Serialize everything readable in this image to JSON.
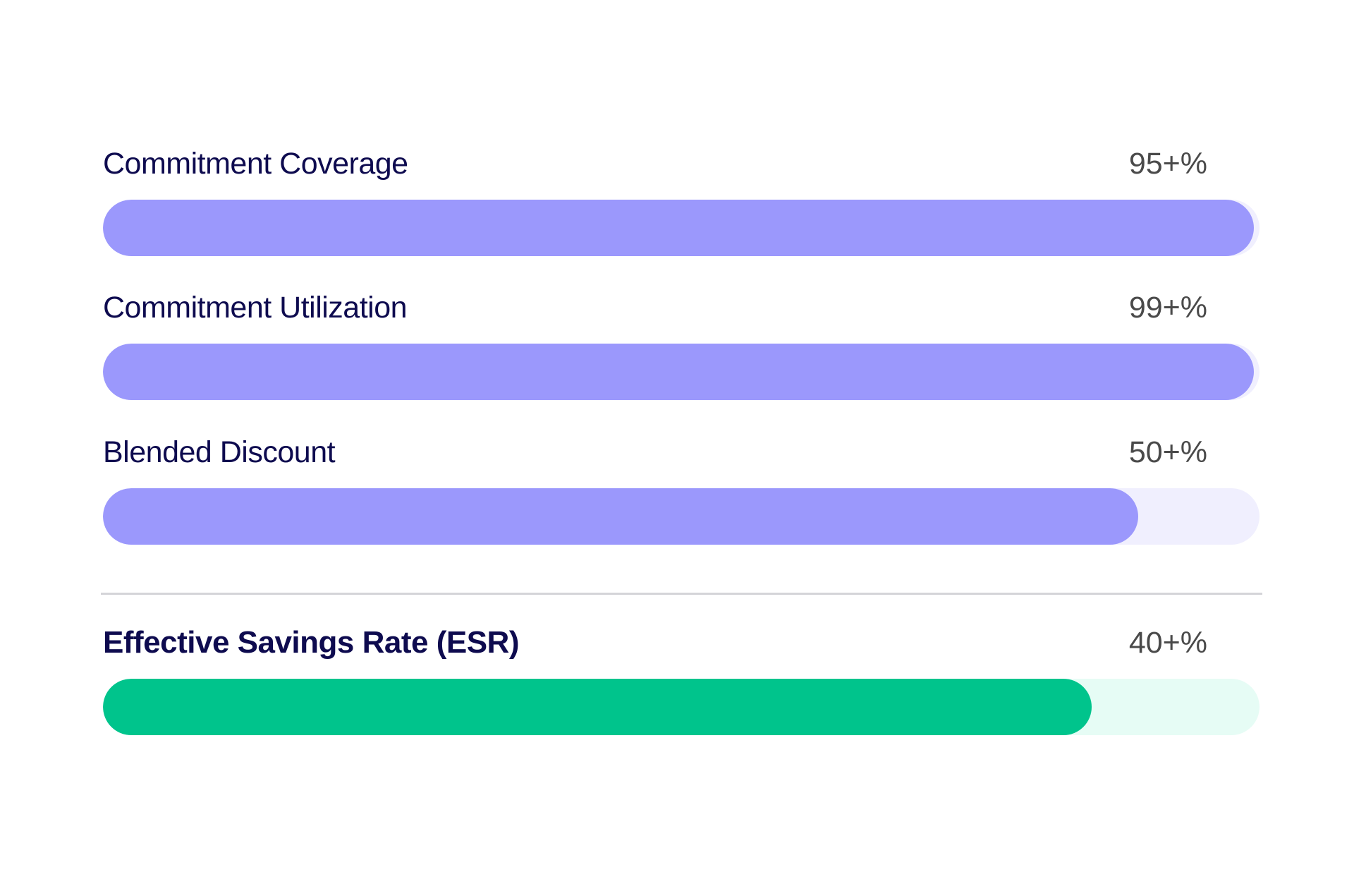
{
  "chart_data": {
    "type": "bar",
    "orientation": "horizontal",
    "title": "",
    "categories": [
      "Commitment Coverage",
      "Commitment Utilization",
      "Blended Discount",
      "Effective Savings Rate (ESR)"
    ],
    "series": [
      {
        "values": [
          0.995,
          0.995,
          0.895,
          0.855
        ]
      }
    ],
    "value_labels": [
      "95+%",
      "99+%",
      "50+%",
      "40+%"
    ],
    "colors": {
      "fill": [
        "#9b98fc",
        "#9b98fc",
        "#9b98fc",
        "#00c48c"
      ],
      "track": [
        "#f0effe",
        "#f0effe",
        "#f0effe",
        "#e6fcf5"
      ],
      "label_text": "#0e0b4f",
      "value_text": "#4a4a4a",
      "divider": "#d4d4d8"
    },
    "emphasized": [
      "Effective Savings Rate (ESR)"
    ],
    "grid": false,
    "legend": "none"
  }
}
